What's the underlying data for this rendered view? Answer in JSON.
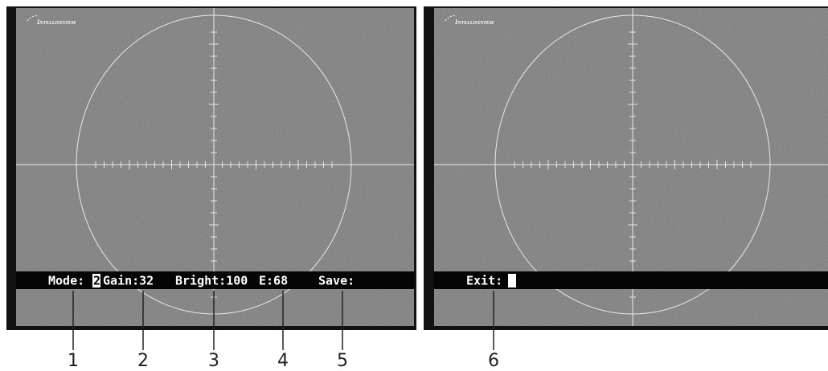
{
  "left_screen": {
    "logo": "Intellisystem",
    "osd": [
      "Mode:",
      "2",
      "Gain:32",
      "Bright:100",
      "E:68",
      "Save:"
    ]
  },
  "right_screen": {
    "logo": "Intellisystem",
    "osd": [
      "Exit:"
    ]
  },
  "callouts": [
    1,
    2,
    3,
    4,
    5,
    6
  ]
}
